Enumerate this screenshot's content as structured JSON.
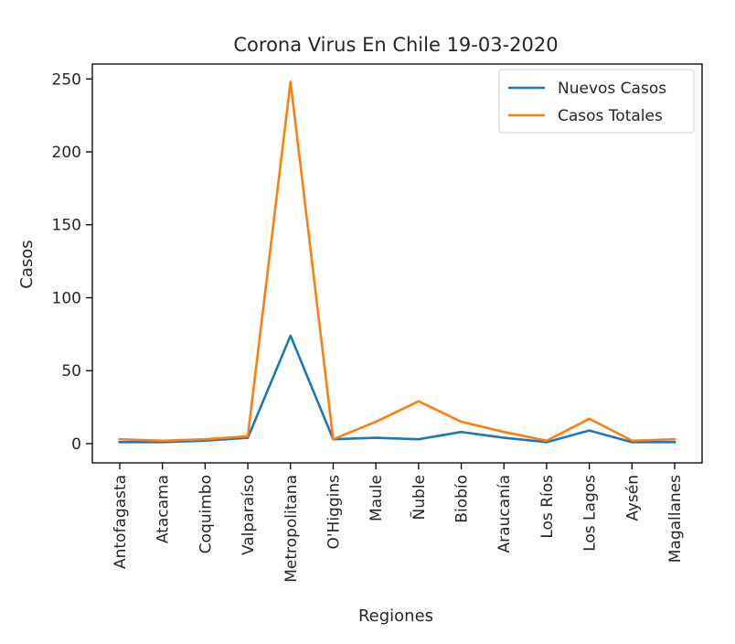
{
  "chart_data": {
    "type": "line",
    "title": "Corona Virus En Chile 19-03-2020",
    "xlabel": "Regiones",
    "ylabel": "Casos",
    "categories": [
      "Antofagasta",
      "Atacama",
      "Coquimbo",
      "Valparaíso",
      "Metropolitana",
      "O'Higgins",
      "Maule",
      "Ñuble",
      "Biobío",
      "Araucanía",
      "Los Ríos",
      "Los Lagos",
      "Aysén",
      "Magallanes"
    ],
    "series": [
      {
        "name": "Nuevos Casos",
        "color": "#1f77b4",
        "values": [
          1,
          1,
          2,
          4,
          74,
          3,
          4,
          3,
          8,
          4,
          1,
          9,
          1,
          1
        ]
      },
      {
        "name": "Casos Totales",
        "color": "#ff7f0e",
        "values": [
          3,
          2,
          3,
          5,
          248,
          3,
          15,
          29,
          15,
          8,
          2,
          17,
          2,
          3
        ]
      }
    ],
    "yticks": [
      0,
      50,
      100,
      150,
      200,
      250
    ],
    "ylim": [
      -13.2,
      260.2
    ],
    "grid": false,
    "legend_position": "top-right"
  }
}
